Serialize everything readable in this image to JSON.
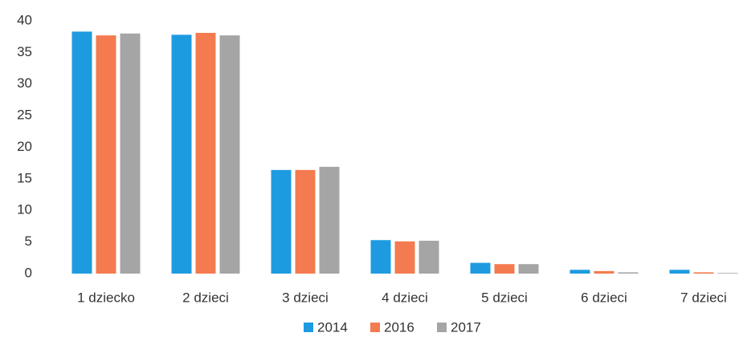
{
  "chart_data": {
    "type": "bar",
    "categories": [
      "1 dziecko",
      "2 dzieci",
      "3 dzieci",
      "4 dzieci",
      "5 dzieci",
      "6 dzieci",
      "7 dzieci"
    ],
    "series": [
      {
        "name": "2014",
        "color": "#1e9be0",
        "values": [
          38.3,
          37.8,
          16.4,
          5.3,
          1.7,
          0.6,
          0.6
        ]
      },
      {
        "name": "2016",
        "color": "#f47b4f",
        "values": [
          37.7,
          38.1,
          16.4,
          5.1,
          1.5,
          0.4,
          0.2
        ]
      },
      {
        "name": "2017",
        "color": "#a5a5a5",
        "values": [
          38.0,
          37.7,
          16.9,
          5.2,
          1.5,
          0.2,
          0.1
        ]
      }
    ],
    "ylim": [
      0,
      40
    ],
    "yticks": [
      0,
      5,
      10,
      15,
      20,
      25,
      30,
      35,
      40
    ],
    "grid": false,
    "legend": "bottom"
  }
}
